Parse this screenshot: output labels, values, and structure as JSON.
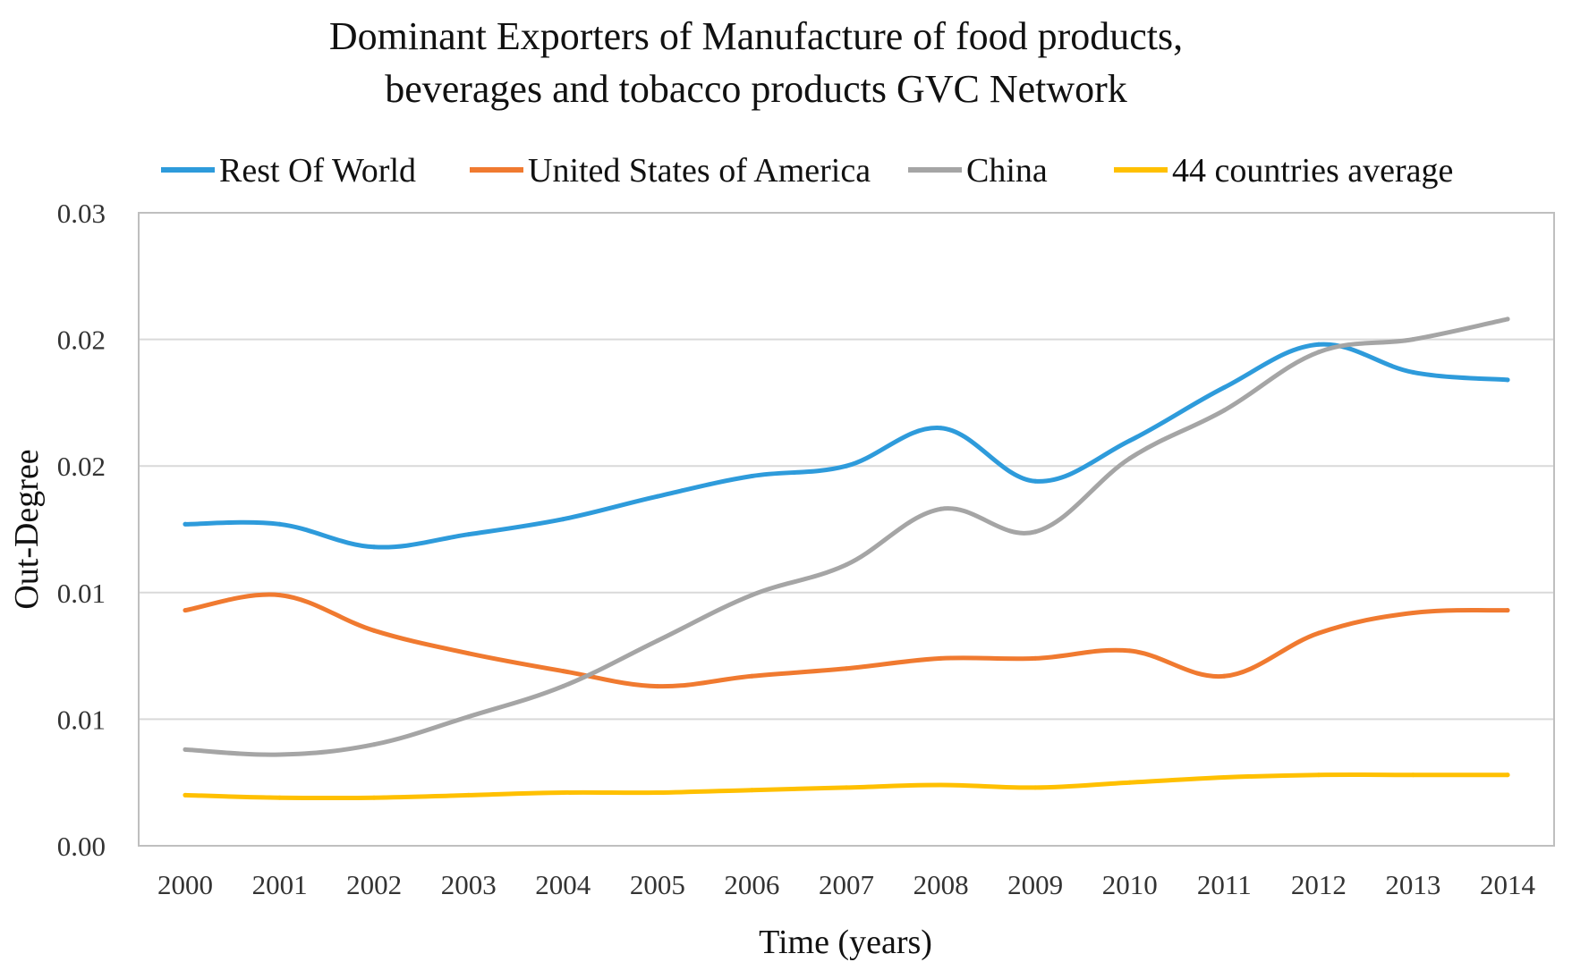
{
  "chart_data": {
    "type": "line",
    "title_lines": [
      "Dominant Exporters of Manufacture of food products,",
      "beverages and tobacco products GVC Network"
    ],
    "xlabel": "Time (years)",
    "ylabel": "Out-Degree",
    "categories": [
      "2000",
      "2001",
      "2002",
      "2003",
      "2004",
      "2005",
      "2006",
      "2007",
      "2008",
      "2009",
      "2010",
      "2011",
      "2012",
      "2013",
      "2014"
    ],
    "ylim": [
      0,
      0.025
    ],
    "yticks": [
      {
        "value": 0,
        "label": "0.00"
      },
      {
        "value": 0.005,
        "label": "0.01"
      },
      {
        "value": 0.01,
        "label": "0.01"
      },
      {
        "value": 0.015,
        "label": "0.02"
      },
      {
        "value": 0.02,
        "label": "0.02"
      },
      {
        "value": 0.025,
        "label": "0.03"
      }
    ],
    "grid": true,
    "legend_position": "top",
    "series": [
      {
        "name": "Rest Of World",
        "color": "#2e9bdb",
        "values": [
          0.0127,
          0.0127,
          0.0118,
          0.0123,
          0.0129,
          0.0138,
          0.0146,
          0.015,
          0.0165,
          0.0144,
          0.016,
          0.0181,
          0.0198,
          0.0187,
          0.0184
        ]
      },
      {
        "name": "United States of America",
        "color": "#f07a30",
        "values": [
          0.0093,
          0.0099,
          0.0085,
          0.0076,
          0.0069,
          0.0063,
          0.0067,
          0.007,
          0.0074,
          0.0074,
          0.0077,
          0.0067,
          0.0084,
          0.0092,
          0.0093
        ]
      },
      {
        "name": "China",
        "color": "#a5a5a5",
        "values": [
          0.0038,
          0.0036,
          0.004,
          0.0051,
          0.0063,
          0.0081,
          0.0099,
          0.0111,
          0.0133,
          0.0124,
          0.0153,
          0.0172,
          0.0195,
          0.02,
          0.0208
        ]
      },
      {
        "name": "44 countries average",
        "color": "#ffc000",
        "values": [
          0.002,
          0.0019,
          0.0019,
          0.002,
          0.0021,
          0.0021,
          0.0022,
          0.0023,
          0.0024,
          0.0023,
          0.0025,
          0.0027,
          0.0028,
          0.0028,
          0.0028
        ]
      }
    ]
  }
}
